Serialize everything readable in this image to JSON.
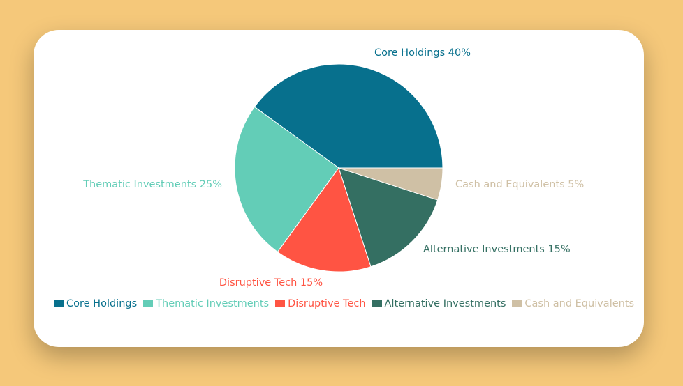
{
  "chart_data": {
    "type": "pie",
    "slices": [
      {
        "label": "Core Holdings",
        "value": 40,
        "color": "#07708D",
        "slice_label": "Core Holdings 40%"
      },
      {
        "label": "Thematic Investments",
        "value": 25,
        "color": "#63CDB7",
        "slice_label": "Thematic Investments 25%"
      },
      {
        "label": "Disruptive Tech",
        "value": 15,
        "color": "#FF5443",
        "slice_label": "Disruptive Tech 15%"
      },
      {
        "label": "Alternative Investments",
        "value": 15,
        "color": "#346F62",
        "slice_label": "Alternative Investments 15%"
      },
      {
        "label": "Cash and Equivalents",
        "value": 5,
        "color": "#CFC0A5",
        "slice_label": "Cash and Equivalents 5%"
      }
    ],
    "legend": {
      "position": "bottom"
    }
  }
}
